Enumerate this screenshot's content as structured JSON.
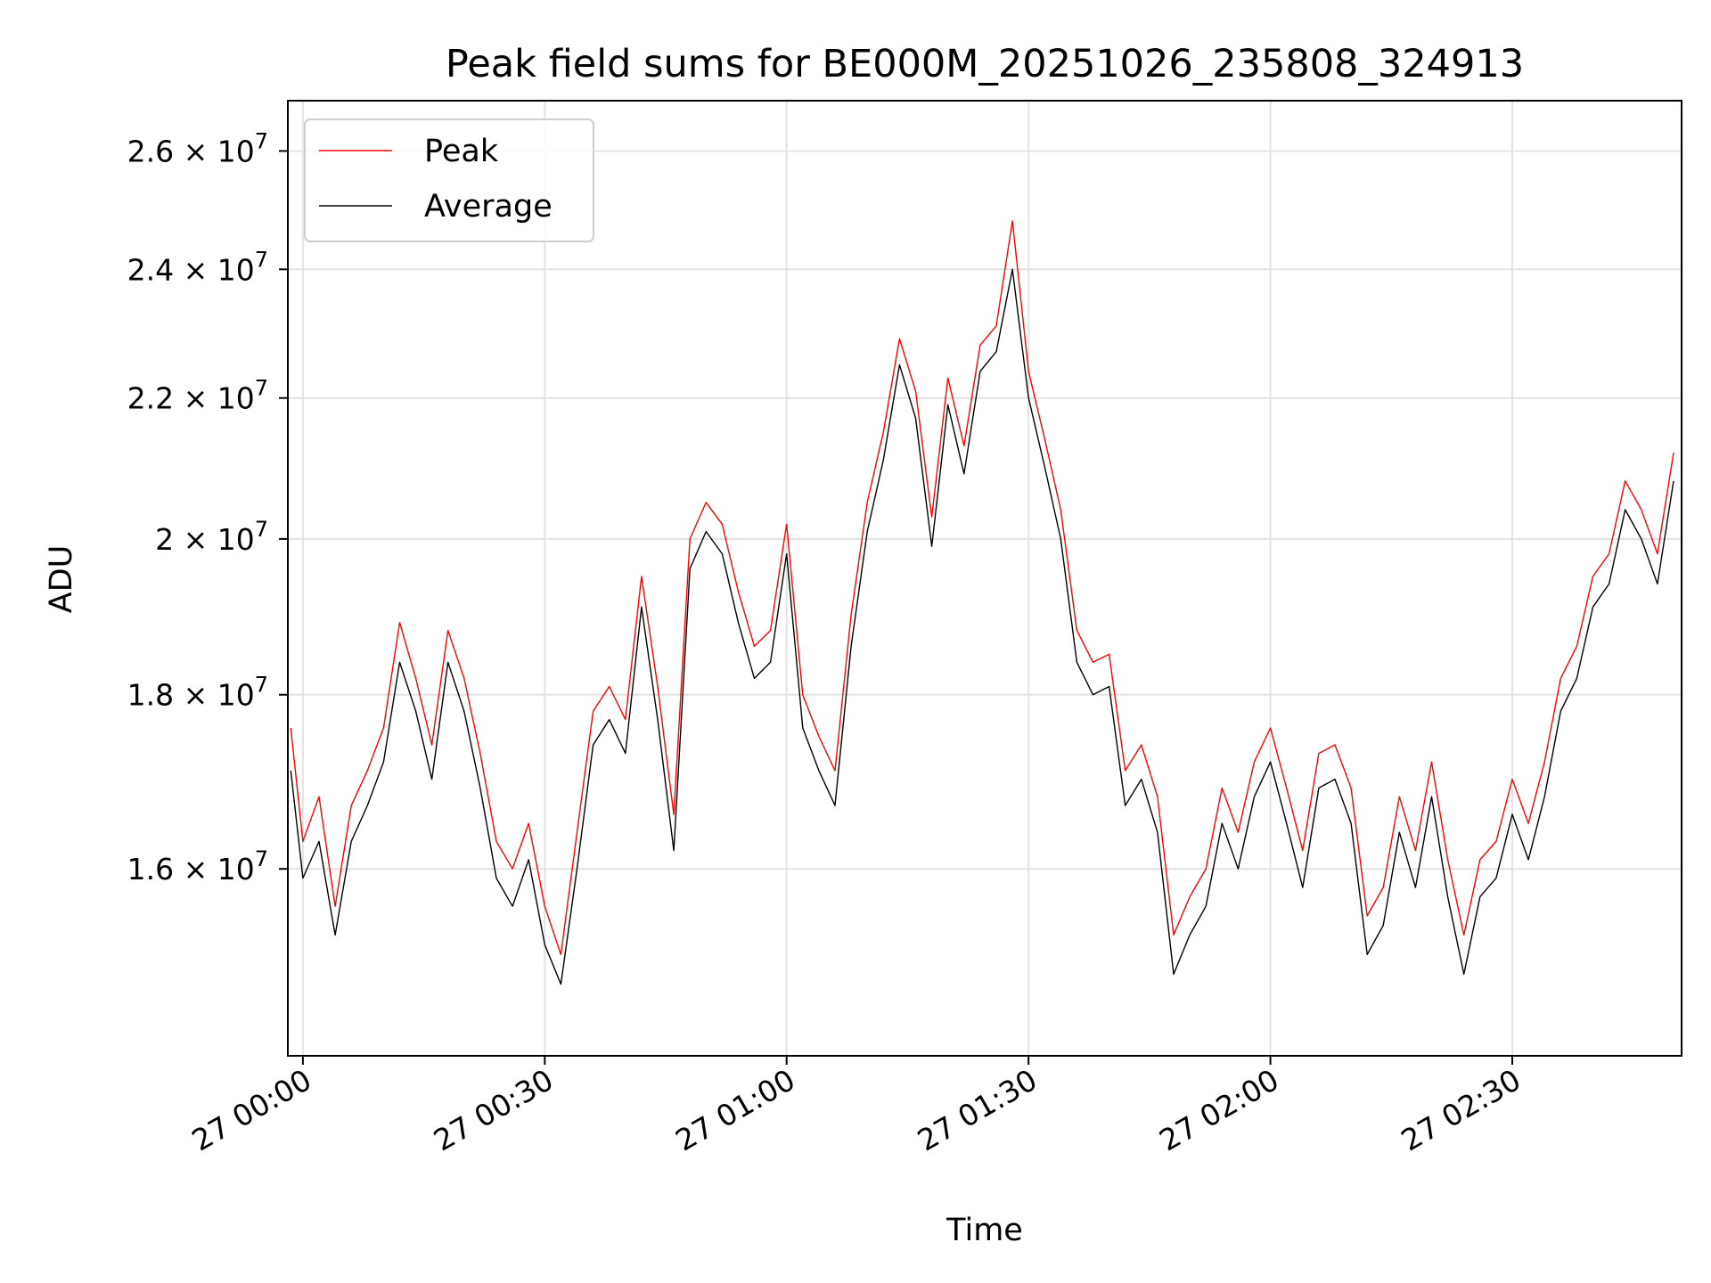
{
  "chart_data": {
    "type": "line",
    "title": "Peak field sums for BE000M_20251026_235808_324913",
    "xlabel": "Time",
    "ylabel": "ADU",
    "y_scale": "log",
    "grid": true,
    "legend_position": "top-left",
    "xlim": [
      "2025-10-26 23:58:08",
      "2025-10-27 02:51:00"
    ],
    "ylim": [
      14100000,
      26900000
    ],
    "x_ticks": [
      {
        "time": "2025-10-27 00:00",
        "label": "27 00:00"
      },
      {
        "time": "2025-10-27 00:30",
        "label": "27 00:30"
      },
      {
        "time": "2025-10-27 01:00",
        "label": "27 01:00"
      },
      {
        "time": "2025-10-27 01:30",
        "label": "27 01:30"
      },
      {
        "time": "2025-10-27 02:00",
        "label": "27 02:00"
      },
      {
        "time": "2025-10-27 02:30",
        "label": "27 02:30"
      }
    ],
    "y_ticks": [
      {
        "value": 16000000,
        "mantissa": "1.6",
        "exponent": "7"
      },
      {
        "value": 18000000,
        "mantissa": "1.8",
        "exponent": "7"
      },
      {
        "value": 20000000,
        "mantissa": "2",
        "exponent": "7"
      },
      {
        "value": 22000000,
        "mantissa": "2.2",
        "exponent": "7"
      },
      {
        "value": 24000000,
        "mantissa": "2.4",
        "exponent": "7"
      },
      {
        "value": 26000000,
        "mantissa": "2.6",
        "exponent": "7"
      }
    ],
    "x": [
      "2025-10-26 23:58:30",
      "2025-10-27 00:00:00",
      "2025-10-27 00:02:00",
      "2025-10-27 00:04:00",
      "2025-10-27 00:06:00",
      "2025-10-27 00:08:00",
      "2025-10-27 00:10:00",
      "2025-10-27 00:12:00",
      "2025-10-27 00:14:00",
      "2025-10-27 00:16:00",
      "2025-10-27 00:18:00",
      "2025-10-27 00:20:00",
      "2025-10-27 00:22:00",
      "2025-10-27 00:24:00",
      "2025-10-27 00:26:00",
      "2025-10-27 00:28:00",
      "2025-10-27 00:30:00",
      "2025-10-27 00:32:00",
      "2025-10-27 00:34:00",
      "2025-10-27 00:36:00",
      "2025-10-27 00:38:00",
      "2025-10-27 00:40:00",
      "2025-10-27 00:42:00",
      "2025-10-27 00:44:00",
      "2025-10-27 00:46:00",
      "2025-10-27 00:48:00",
      "2025-10-27 00:50:00",
      "2025-10-27 00:52:00",
      "2025-10-27 00:54:00",
      "2025-10-27 00:56:00",
      "2025-10-27 00:58:00",
      "2025-10-27 01:00:00",
      "2025-10-27 01:02:00",
      "2025-10-27 01:04:00",
      "2025-10-27 01:06:00",
      "2025-10-27 01:08:00",
      "2025-10-27 01:10:00",
      "2025-10-27 01:12:00",
      "2025-10-27 01:14:00",
      "2025-10-27 01:16:00",
      "2025-10-27 01:18:00",
      "2025-10-27 01:20:00",
      "2025-10-27 01:22:00",
      "2025-10-27 01:24:00",
      "2025-10-27 01:26:00",
      "2025-10-27 01:28:00",
      "2025-10-27 01:30:00",
      "2025-10-27 01:32:00",
      "2025-10-27 01:34:00",
      "2025-10-27 01:36:00",
      "2025-10-27 01:38:00",
      "2025-10-27 01:40:00",
      "2025-10-27 01:42:00",
      "2025-10-27 01:44:00",
      "2025-10-27 01:46:00",
      "2025-10-27 01:48:00",
      "2025-10-27 01:50:00",
      "2025-10-27 01:52:00",
      "2025-10-27 01:54:00",
      "2025-10-27 01:56:00",
      "2025-10-27 01:58:00",
      "2025-10-27 02:00:00",
      "2025-10-27 02:02:00",
      "2025-10-27 02:04:00",
      "2025-10-27 02:06:00",
      "2025-10-27 02:08:00",
      "2025-10-27 02:10:00",
      "2025-10-27 02:12:00",
      "2025-10-27 02:14:00",
      "2025-10-27 02:16:00",
      "2025-10-27 02:18:00",
      "2025-10-27 02:20:00",
      "2025-10-27 02:22:00",
      "2025-10-27 02:24:00",
      "2025-10-27 02:26:00",
      "2025-10-27 02:28:00",
      "2025-10-27 02:30:00",
      "2025-10-27 02:32:00",
      "2025-10-27 02:34:00",
      "2025-10-27 02:36:00",
      "2025-10-27 02:38:00",
      "2025-10-27 02:40:00",
      "2025-10-27 02:42:00",
      "2025-10-27 02:44:00",
      "2025-10-27 02:46:00",
      "2025-10-27 02:48:00",
      "2025-10-27 02:50:00"
    ],
    "series": [
      {
        "name": "Peak",
        "color": "#ff0000",
        "values": [
          17600000,
          16300000,
          16800000,
          15600000,
          16700000,
          17100000,
          17600000,
          18900000,
          18200000,
          17400000,
          18800000,
          18200000,
          17300000,
          16300000,
          16000000,
          16500000,
          15600000,
          15100000,
          16400000,
          17800000,
          18100000,
          17700000,
          19500000,
          18100000,
          16600000,
          20000000,
          20500000,
          20200000,
          19300000,
          18600000,
          18800000,
          20200000,
          18000000,
          17500000,
          17100000,
          19000000,
          20500000,
          21500000,
          22900000,
          22100000,
          20300000,
          22300000,
          21300000,
          22800000,
          23100000,
          24800000,
          22400000,
          21400000,
          20400000,
          18800000,
          18400000,
          18500000,
          17100000,
          17400000,
          16800000,
          15300000,
          15700000,
          16000000,
          16900000,
          16400000,
          17200000,
          17600000,
          16900000,
          16200000,
          17300000,
          17400000,
          16900000,
          15500000,
          15800000,
          16800000,
          16200000,
          17200000,
          16100000,
          15300000,
          16100000,
          16300000,
          17000000,
          16500000,
          17200000,
          18200000,
          18600000,
          19500000,
          19800000,
          20800000,
          20400000,
          19800000,
          21200000
        ]
      },
      {
        "name": "Average",
        "color": "#000000",
        "values": [
          17100000,
          15900000,
          16300000,
          15300000,
          16300000,
          16700000,
          17200000,
          18400000,
          17800000,
          17000000,
          18400000,
          17800000,
          16900000,
          15900000,
          15600000,
          16100000,
          15200000,
          14800000,
          16000000,
          17400000,
          17700000,
          17300000,
          19100000,
          17700000,
          16200000,
          19600000,
          20100000,
          19800000,
          18900000,
          18200000,
          18400000,
          19800000,
          17600000,
          17100000,
          16700000,
          18600000,
          20100000,
          21100000,
          22500000,
          21700000,
          19900000,
          21900000,
          20900000,
          22400000,
          22700000,
          24000000,
          22000000,
          21000000,
          20000000,
          18400000,
          18000000,
          18100000,
          16700000,
          17000000,
          16400000,
          14900000,
          15300000,
          15600000,
          16500000,
          16000000,
          16800000,
          17200000,
          16500000,
          15800000,
          16900000,
          17000000,
          16500000,
          15100000,
          15400000,
          16400000,
          15800000,
          16800000,
          15700000,
          14900000,
          15700000,
          15900000,
          16600000,
          16100000,
          16800000,
          17800000,
          18200000,
          19100000,
          19400000,
          20400000,
          20000000,
          19400000,
          20800000
        ]
      }
    ]
  }
}
